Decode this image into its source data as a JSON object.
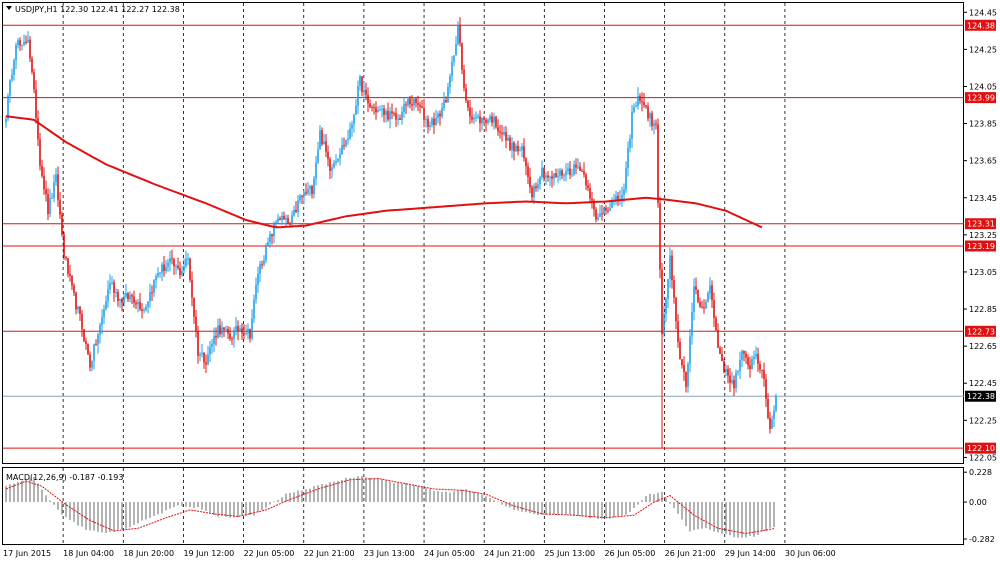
{
  "header": {
    "title": "USDJPY,H1  122.30 122.41 122.27 122.38"
  },
  "indicator": {
    "label": "MACD(12,26,9) -0.187 -0.193"
  },
  "colors": {
    "bull": "#1ea0e8",
    "bear": "#e01010",
    "level_line": "#e01010",
    "ma_line": "#e01010",
    "grid": "#000000",
    "histogram": "#808080",
    "signal": "#e01010",
    "current_price_line": "#8aa4b8",
    "current_price_tag": "#000000"
  },
  "chart_data": [
    {
      "type": "candlestick",
      "symbol": "USDJPY",
      "timeframe": "H1",
      "ylim": [
        122.02,
        124.5
      ],
      "y_ticks": [
        "124.45",
        "124.25",
        "124.05",
        "123.85",
        "123.65",
        "123.45",
        "123.25",
        "123.05",
        "122.85",
        "122.65",
        "122.45",
        "122.25",
        "122.05"
      ],
      "x_ticks": [
        "17 Jun 2015",
        "18 Jun 04:00",
        "18 Jun 20:00",
        "19 Jun 12:00",
        "22 Jun 05:00",
        "22 Jun 21:00",
        "23 Jun 13:00",
        "24 Jun 05:00",
        "24 Jun 21:00",
        "25 Jun 13:00",
        "26 Jun 05:00",
        "26 Jun 21:00",
        "29 Jun 14:00",
        "30 Jun 06:00"
      ],
      "grid": "vertical dashed at each time label",
      "horizontal_levels": [
        "124.38",
        "123.99",
        "123.31",
        "123.19",
        "122.73",
        "122.10"
      ],
      "current_price": "122.38",
      "moving_average": [
        [
          0,
          123.89
        ],
        [
          14,
          123.87
        ],
        [
          30,
          123.75
        ],
        [
          50,
          123.63
        ],
        [
          75,
          123.52
        ],
        [
          100,
          123.42
        ],
        [
          120,
          123.33
        ],
        [
          135,
          123.29
        ],
        [
          150,
          123.3
        ],
        [
          170,
          123.35
        ],
        [
          190,
          123.38
        ],
        [
          215,
          123.4
        ],
        [
          240,
          123.42
        ],
        [
          260,
          123.43
        ],
        [
          280,
          123.42
        ],
        [
          300,
          123.43
        ],
        [
          320,
          123.45
        ],
        [
          330,
          123.44
        ],
        [
          345,
          123.42
        ],
        [
          360,
          123.38
        ],
        [
          370,
          123.33
        ],
        [
          378,
          123.29
        ]
      ],
      "anchors": [
        [
          0,
          123.9
        ],
        [
          5,
          124.3
        ],
        [
          8,
          124.25
        ],
        [
          11,
          124.32
        ],
        [
          15,
          123.9
        ],
        [
          17,
          123.65
        ],
        [
          21,
          123.38
        ],
        [
          25,
          123.55
        ],
        [
          29,
          123.15
        ],
        [
          33,
          122.95
        ],
        [
          37,
          122.8
        ],
        [
          42,
          122.55
        ],
        [
          47,
          122.75
        ],
        [
          52,
          123.0
        ],
        [
          57,
          122.9
        ],
        [
          63,
          122.92
        ],
        [
          69,
          122.85
        ],
        [
          76,
          123.05
        ],
        [
          82,
          123.1
        ],
        [
          87,
          123.05
        ],
        [
          91,
          123.12
        ],
        [
          96,
          122.62
        ],
        [
          100,
          122.58
        ],
        [
          106,
          122.75
        ],
        [
          112,
          122.7
        ],
        [
          117,
          122.75
        ],
        [
          122,
          122.72
        ],
        [
          126,
          123.05
        ],
        [
          131,
          123.2
        ],
        [
          136,
          123.35
        ],
        [
          142,
          123.3
        ],
        [
          147,
          123.45
        ],
        [
          153,
          123.5
        ],
        [
          157,
          123.8
        ],
        [
          162,
          123.62
        ],
        [
          167,
          123.7
        ],
        [
          172,
          123.8
        ],
        [
          177,
          124.08
        ],
        [
          181,
          123.95
        ],
        [
          186,
          123.92
        ],
        [
          191,
          123.9
        ],
        [
          196,
          123.87
        ],
        [
          201,
          123.97
        ],
        [
          206,
          123.95
        ],
        [
          211,
          123.85
        ],
        [
          216,
          123.88
        ],
        [
          221,
          124.02
        ],
        [
          226,
          124.38
        ],
        [
          229,
          124.02
        ],
        [
          233,
          123.88
        ],
        [
          238,
          123.87
        ],
        [
          243,
          123.88
        ],
        [
          248,
          123.8
        ],
        [
          253,
          123.72
        ],
        [
          258,
          123.7
        ],
        [
          263,
          123.48
        ],
        [
          268,
          123.6
        ],
        [
          272,
          123.55
        ],
        [
          277,
          123.58
        ],
        [
          282,
          123.6
        ],
        [
          287,
          123.62
        ],
        [
          291,
          123.52
        ],
        [
          295,
          123.32
        ],
        [
          299,
          123.4
        ],
        [
          304,
          123.42
        ],
        [
          309,
          123.48
        ],
        [
          313,
          123.9
        ],
        [
          317,
          124.0
        ],
        [
          321,
          123.9
        ],
        [
          325,
          123.82
        ],
        [
          328,
          122.7
        ],
        [
          332,
          123.12
        ],
        [
          336,
          122.65
        ],
        [
          340,
          122.45
        ],
        [
          344,
          122.95
        ],
        [
          348,
          122.85
        ],
        [
          352,
          122.97
        ],
        [
          356,
          122.65
        ],
        [
          360,
          122.5
        ],
        [
          364,
          122.45
        ],
        [
          368,
          122.6
        ],
        [
          372,
          122.55
        ],
        [
          375,
          122.62
        ],
        [
          379,
          122.45
        ],
        [
          382,
          122.2
        ],
        [
          385,
          122.38
        ]
      ],
      "spikes": [
        [
          328,
          122.1
        ]
      ]
    },
    {
      "type": "macd",
      "params": "12,26,9",
      "main": "-0.187",
      "signal_value": "-0.193",
      "ylim": [
        -0.32,
        0.26
      ],
      "y_ticks": [
        "0.228",
        "0.00",
        "-0.282"
      ],
      "histogram_anchors": [
        [
          0,
          0.12
        ],
        [
          8,
          0.16
        ],
        [
          14,
          0.19
        ],
        [
          20,
          0.05
        ],
        [
          28,
          -0.1
        ],
        [
          40,
          -0.21
        ],
        [
          50,
          -0.24
        ],
        [
          60,
          -0.2
        ],
        [
          72,
          -0.12
        ],
        [
          86,
          -0.03
        ],
        [
          96,
          -0.04
        ],
        [
          104,
          -0.1
        ],
        [
          112,
          -0.12
        ],
        [
          124,
          -0.1
        ],
        [
          132,
          -0.02
        ],
        [
          140,
          0.06
        ],
        [
          150,
          0.1
        ],
        [
          160,
          0.14
        ],
        [
          170,
          0.18
        ],
        [
          178,
          0.2
        ],
        [
          186,
          0.18
        ],
        [
          194,
          0.15
        ],
        [
          204,
          0.13
        ],
        [
          214,
          0.09
        ],
        [
          222,
          0.07
        ],
        [
          230,
          0.1
        ],
        [
          238,
          0.06
        ],
        [
          246,
          0.0
        ],
        [
          254,
          -0.06
        ],
        [
          266,
          -0.1
        ],
        [
          280,
          -0.09
        ],
        [
          292,
          -0.12
        ],
        [
          302,
          -0.13
        ],
        [
          312,
          -0.08
        ],
        [
          320,
          0.05
        ],
        [
          328,
          0.08
        ],
        [
          334,
          -0.05
        ],
        [
          342,
          -0.22
        ],
        [
          350,
          -0.2
        ],
        [
          358,
          -0.24
        ],
        [
          366,
          -0.27
        ],
        [
          374,
          -0.26
        ],
        [
          382,
          -0.2
        ],
        [
          385,
          -0.19
        ]
      ],
      "signal_anchors": [
        [
          0,
          0.1
        ],
        [
          10,
          0.16
        ],
        [
          18,
          0.12
        ],
        [
          30,
          -0.02
        ],
        [
          42,
          -0.14
        ],
        [
          54,
          -0.22
        ],
        [
          66,
          -0.2
        ],
        [
          80,
          -0.12
        ],
        [
          92,
          -0.06
        ],
        [
          104,
          -0.09
        ],
        [
          116,
          -0.11
        ],
        [
          130,
          -0.06
        ],
        [
          142,
          0.02
        ],
        [
          156,
          0.1
        ],
        [
          172,
          0.17
        ],
        [
          186,
          0.18
        ],
        [
          200,
          0.14
        ],
        [
          214,
          0.1
        ],
        [
          228,
          0.09
        ],
        [
          240,
          0.06
        ],
        [
          254,
          -0.03
        ],
        [
          268,
          -0.09
        ],
        [
          284,
          -0.1
        ],
        [
          300,
          -0.12
        ],
        [
          314,
          -0.1
        ],
        [
          324,
          0.0
        ],
        [
          332,
          0.05
        ],
        [
          344,
          -0.1
        ],
        [
          356,
          -0.2
        ],
        [
          370,
          -0.24
        ],
        [
          385,
          -0.2
        ]
      ]
    }
  ]
}
